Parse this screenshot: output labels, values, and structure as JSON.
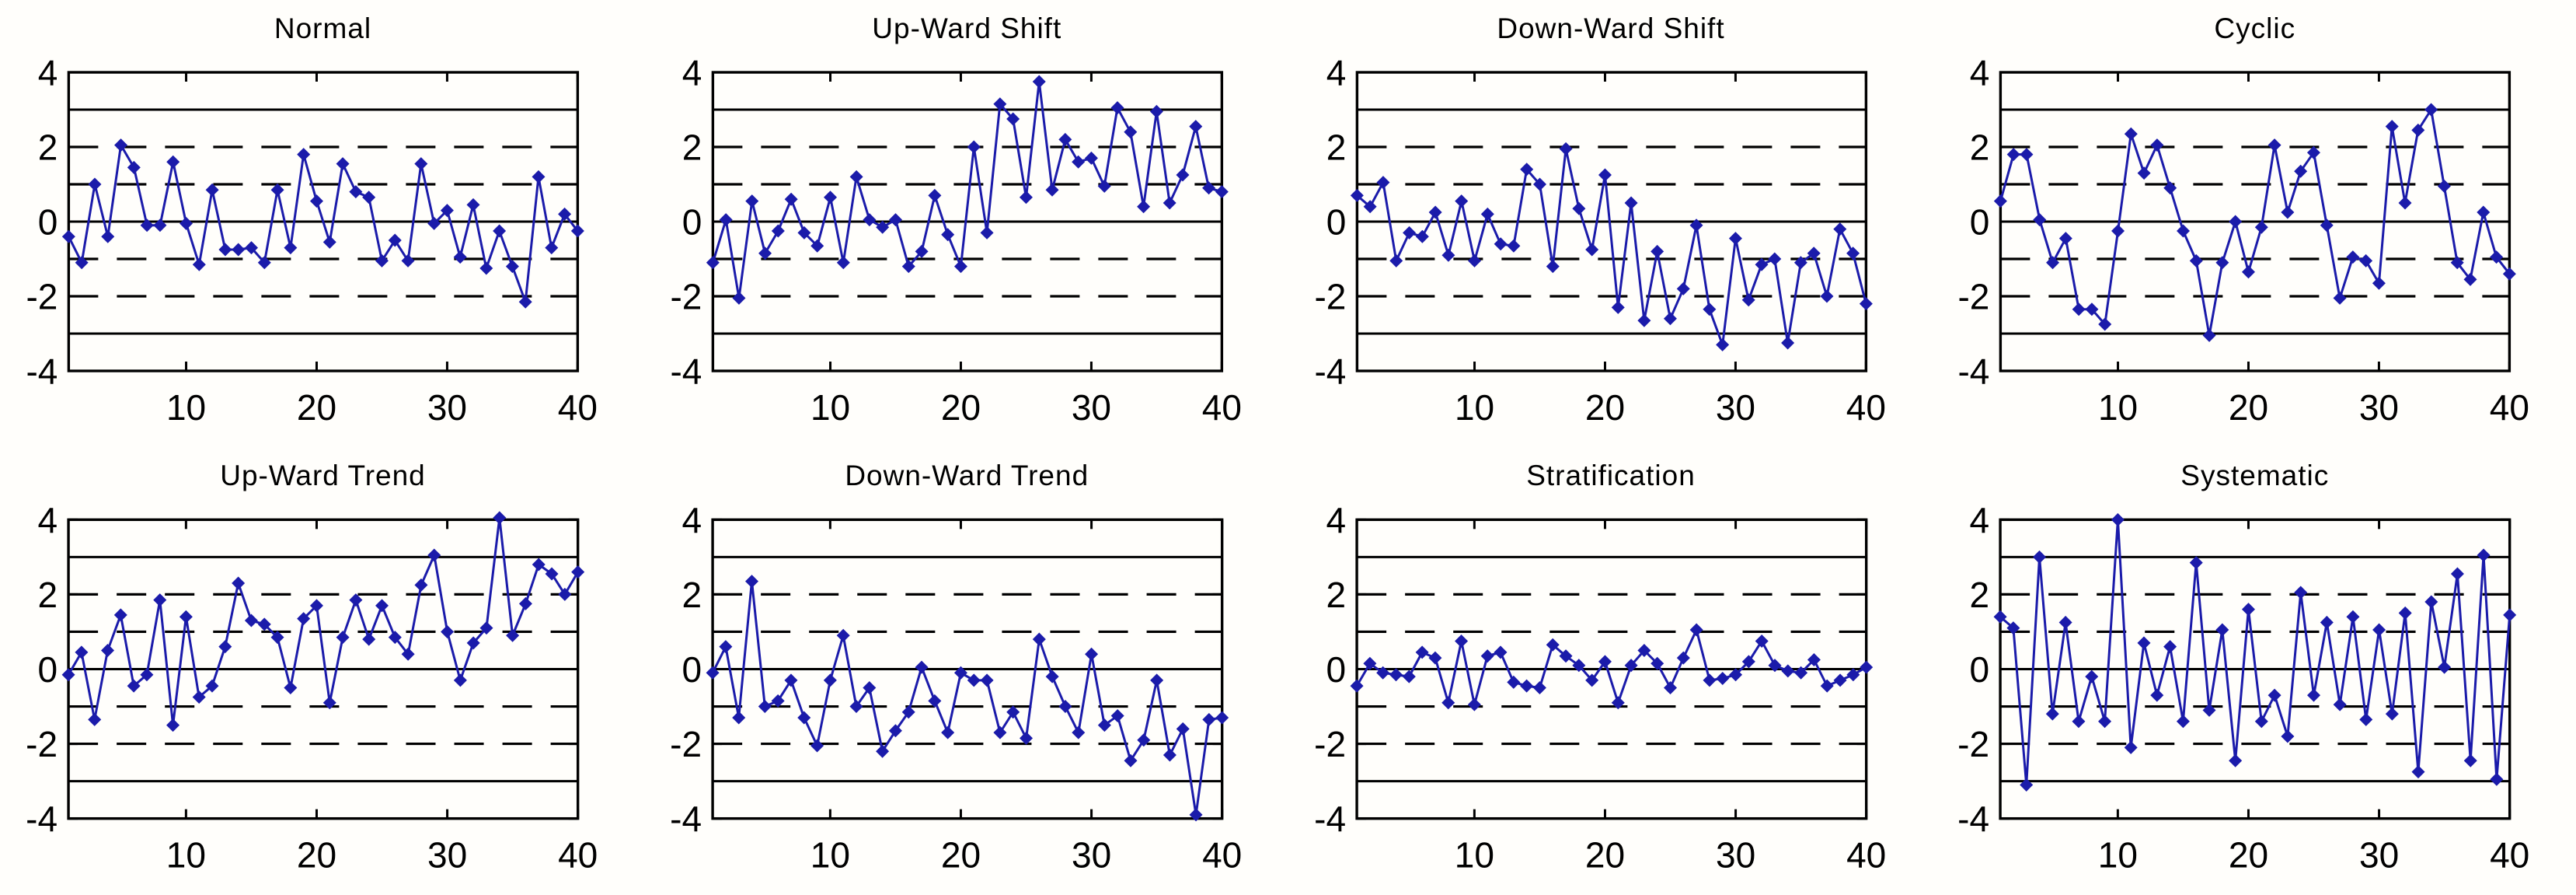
{
  "page": {
    "background": "#ffffff",
    "layout": "2 rows x 4 columns of control-chart pattern plots"
  },
  "styles": {
    "series_color": "#1b1baa",
    "axis_color": "#000000",
    "tick_label_size": 46,
    "title_size": 37
  },
  "chart_data": [
    {
      "type": "line",
      "title": "Normal",
      "marker": "diamond",
      "xlim": [
        1,
        40
      ],
      "ylim": [
        -4,
        4
      ],
      "x_ticks": [
        10,
        20,
        30,
        40
      ],
      "y_ticks": [
        4,
        2,
        0,
        -2,
        -4
      ],
      "solid_lines": [
        3,
        0,
        -3
      ],
      "dashed_lines": [
        2,
        1,
        -1,
        -2
      ],
      "grid": true,
      "legend": "none",
      "values": [
        -0.4,
        -1.1,
        1.0,
        -0.4,
        2.05,
        1.45,
        -0.1,
        -0.1,
        1.6,
        -0.05,
        -1.15,
        0.85,
        -0.75,
        -0.75,
        -0.7,
        -1.1,
        0.85,
        -0.7,
        1.8,
        0.55,
        -0.55,
        1.55,
        0.8,
        0.65,
        -1.05,
        -0.5,
        -1.05,
        1.55,
        -0.05,
        0.3,
        -0.95,
        0.45,
        -1.25,
        -0.25,
        -1.2,
        -2.15,
        1.2,
        -0.7,
        0.2,
        -0.25
      ]
    },
    {
      "type": "line",
      "title": "Up-Ward Shift",
      "marker": "diamond",
      "xlim": [
        1,
        40
      ],
      "ylim": [
        -4,
        4
      ],
      "x_ticks": [
        10,
        20,
        30,
        40
      ],
      "y_ticks": [
        4,
        2,
        0,
        -2,
        -4
      ],
      "solid_lines": [
        3,
        0,
        -3
      ],
      "dashed_lines": [
        2,
        1,
        -1,
        -2
      ],
      "grid": true,
      "legend": "none",
      "values": [
        -1.1,
        0.05,
        -2.05,
        0.55,
        -0.85,
        -0.25,
        0.6,
        -0.3,
        -0.65,
        0.65,
        -1.1,
        1.2,
        0.05,
        -0.15,
        0.05,
        -1.2,
        -0.8,
        0.7,
        -0.35,
        -1.2,
        2.0,
        -0.3,
        3.15,
        2.75,
        0.65,
        3.75,
        0.85,
        2.2,
        1.6,
        1.7,
        0.95,
        3.05,
        2.4,
        0.4,
        2.95,
        0.5,
        1.25,
        2.55,
        0.9,
        0.8
      ]
    },
    {
      "type": "line",
      "title": "Down-Ward Shift",
      "marker": "diamond",
      "xlim": [
        1,
        40
      ],
      "ylim": [
        -4,
        4
      ],
      "x_ticks": [
        10,
        20,
        30,
        40
      ],
      "y_ticks": [
        4,
        2,
        0,
        -2,
        -4
      ],
      "solid_lines": [
        3,
        0,
        -3
      ],
      "dashed_lines": [
        2,
        1,
        -1,
        -2
      ],
      "grid": true,
      "legend": "none",
      "values": [
        0.7,
        0.4,
        1.05,
        -1.05,
        -0.3,
        -0.4,
        0.25,
        -0.9,
        0.55,
        -1.05,
        0.2,
        -0.6,
        -0.65,
        1.4,
        1.0,
        -1.2,
        1.95,
        0.35,
        -0.75,
        1.25,
        -2.3,
        0.5,
        -2.65,
        -0.8,
        -2.6,
        -1.8,
        -0.1,
        -2.35,
        -3.3,
        -0.45,
        -2.1,
        -1.15,
        -1.0,
        -3.25,
        -1.1,
        -0.85,
        -2.0,
        -0.2,
        -0.85,
        -2.2
      ]
    },
    {
      "type": "line",
      "title": "Cyclic",
      "marker": "diamond",
      "xlim": [
        1,
        40
      ],
      "ylim": [
        -4,
        4
      ],
      "x_ticks": [
        10,
        20,
        30,
        40
      ],
      "y_ticks": [
        4,
        2,
        0,
        -2,
        -4
      ],
      "solid_lines": [
        3,
        0,
        -3
      ],
      "dashed_lines": [
        2,
        1,
        -1,
        -2
      ],
      "grid": true,
      "legend": "none",
      "values": [
        0.55,
        1.8,
        1.8,
        0.05,
        -1.1,
        -0.45,
        -2.35,
        -2.35,
        -2.75,
        -0.25,
        2.35,
        1.3,
        2.05,
        0.9,
        -0.25,
        -1.05,
        -3.05,
        -1.1,
        0.0,
        -1.35,
        -0.15,
        2.05,
        0.25,
        1.35,
        1.85,
        -0.1,
        -2.05,
        -0.95,
        -1.05,
        -1.65,
        2.55,
        0.5,
        2.45,
        3.0,
        0.95,
        -1.1,
        -1.55,
        0.25,
        -0.95,
        -1.4
      ]
    },
    {
      "type": "line",
      "title": "Up-Ward Trend",
      "marker": "diamond",
      "xlim": [
        1,
        40
      ],
      "ylim": [
        -4,
        4
      ],
      "x_ticks": [
        10,
        20,
        30,
        40
      ],
      "y_ticks": [
        4,
        2,
        0,
        -2,
        -4
      ],
      "solid_lines": [
        3,
        0,
        -3
      ],
      "dashed_lines": [
        2,
        1,
        -1,
        -2
      ],
      "grid": true,
      "legend": "none",
      "values": [
        -0.15,
        0.45,
        -1.35,
        0.5,
        1.45,
        -0.45,
        -0.15,
        1.85,
        -1.5,
        1.4,
        -0.75,
        -0.45,
        0.6,
        2.3,
        1.3,
        1.2,
        0.85,
        -0.5,
        1.35,
        1.7,
        -0.9,
        0.85,
        1.85,
        0.8,
        1.7,
        0.85,
        0.4,
        2.25,
        3.05,
        1.0,
        -0.3,
        0.7,
        1.1,
        4.05,
        0.9,
        1.75,
        2.8,
        2.55,
        2.0,
        2.6
      ]
    },
    {
      "type": "line",
      "title": "Down-Ward Trend",
      "marker": "diamond",
      "xlim": [
        1,
        40
      ],
      "ylim": [
        -4,
        4
      ],
      "x_ticks": [
        10,
        20,
        30,
        40
      ],
      "y_ticks": [
        4,
        2,
        0,
        -2,
        -4
      ],
      "solid_lines": [
        3,
        0,
        -3
      ],
      "dashed_lines": [
        2,
        1,
        -1,
        -2
      ],
      "grid": true,
      "legend": "none",
      "values": [
        -0.1,
        0.6,
        -1.3,
        2.35,
        -1.0,
        -0.85,
        -0.3,
        -1.3,
        -2.05,
        -0.3,
        0.9,
        -1.0,
        -0.5,
        -2.2,
        -1.65,
        -1.15,
        0.05,
        -0.85,
        -1.7,
        -0.1,
        -0.3,
        -0.3,
        -1.7,
        -1.15,
        -1.85,
        0.8,
        -0.2,
        -1.0,
        -1.7,
        0.4,
        -1.5,
        -1.25,
        -2.45,
        -1.9,
        -0.3,
        -2.3,
        -1.6,
        -3.9,
        -1.35,
        -1.3
      ]
    },
    {
      "type": "line",
      "title": "Stratification",
      "marker": "diamond",
      "xlim": [
        1,
        40
      ],
      "ylim": [
        -4,
        4
      ],
      "x_ticks": [
        10,
        20,
        30,
        40
      ],
      "y_ticks": [
        4,
        2,
        0,
        -2,
        -4
      ],
      "solid_lines": [
        3,
        0,
        -3
      ],
      "dashed_lines": [
        2,
        1,
        -1,
        -2
      ],
      "grid": true,
      "legend": "none",
      "values": [
        -0.45,
        0.15,
        -0.1,
        -0.15,
        -0.2,
        0.45,
        0.3,
        -0.9,
        0.75,
        -0.95,
        0.35,
        0.45,
        -0.35,
        -0.45,
        -0.5,
        0.65,
        0.35,
        0.1,
        -0.3,
        0.2,
        -0.9,
        0.1,
        0.5,
        0.15,
        -0.5,
        0.3,
        1.05,
        -0.3,
        -0.25,
        -0.15,
        0.2,
        0.75,
        0.1,
        -0.05,
        -0.1,
        0.25,
        -0.45,
        -0.3,
        -0.15,
        0.05
      ]
    },
    {
      "type": "line",
      "title": "Systematic",
      "marker": "diamond",
      "xlim": [
        1,
        40
      ],
      "ylim": [
        -4,
        4
      ],
      "x_ticks": [
        10,
        20,
        30,
        40
      ],
      "y_ticks": [
        4,
        2,
        0,
        -2,
        -4
      ],
      "solid_lines": [
        3,
        0,
        -3
      ],
      "dashed_lines": [
        2,
        1,
        -1,
        -2
      ],
      "grid": true,
      "legend": "none",
      "values": [
        1.4,
        1.1,
        -3.1,
        3.0,
        -1.2,
        1.25,
        -1.4,
        -0.2,
        -1.4,
        4.0,
        -2.1,
        0.7,
        -0.7,
        0.6,
        -1.4,
        2.85,
        -1.1,
        1.05,
        -2.45,
        1.6,
        -1.4,
        -0.7,
        -1.8,
        2.05,
        -0.7,
        1.25,
        -0.95,
        1.4,
        -1.35,
        1.05,
        -1.2,
        1.5,
        -2.75,
        1.8,
        0.05,
        2.55,
        -2.45,
        3.05,
        -2.95,
        1.45
      ]
    }
  ]
}
